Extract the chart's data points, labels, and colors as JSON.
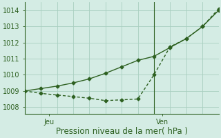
{
  "line1_x": [
    0,
    2,
    4,
    6,
    8,
    10,
    12,
    14,
    16,
    18,
    20,
    22,
    24
  ],
  "line1_y": [
    1009.0,
    1009.15,
    1009.3,
    1009.5,
    1009.75,
    1010.1,
    1010.5,
    1010.9,
    1011.15,
    1011.7,
    1012.25,
    1013.0,
    1014.0
  ],
  "line2_x": [
    0,
    2,
    4,
    6,
    8,
    10,
    12,
    14,
    16,
    18,
    20,
    22,
    24
  ],
  "line2_y": [
    1009.0,
    1008.85,
    1008.75,
    1008.65,
    1008.55,
    1008.4,
    1008.45,
    1008.5,
    1010.0,
    1011.75,
    1012.25,
    1013.0,
    1014.1
  ],
  "line_color": "#2d6020",
  "bg_color": "#d4ece4",
  "grid_color": "#a8cfc0",
  "axis_color": "#2d6020",
  "xlabel": "Pression niveau de la mer( hPa )",
  "ylim": [
    1007.6,
    1014.5
  ],
  "yticks": [
    1008,
    1009,
    1010,
    1011,
    1012,
    1013,
    1014
  ],
  "xlim": [
    0,
    24
  ],
  "jeu_x": 3,
  "ven_x": 17,
  "ven_line_x": 16,
  "xlabel_fontsize": 8.5,
  "tick_fontsize": 7,
  "marker": "D",
  "markersize": 2.5
}
